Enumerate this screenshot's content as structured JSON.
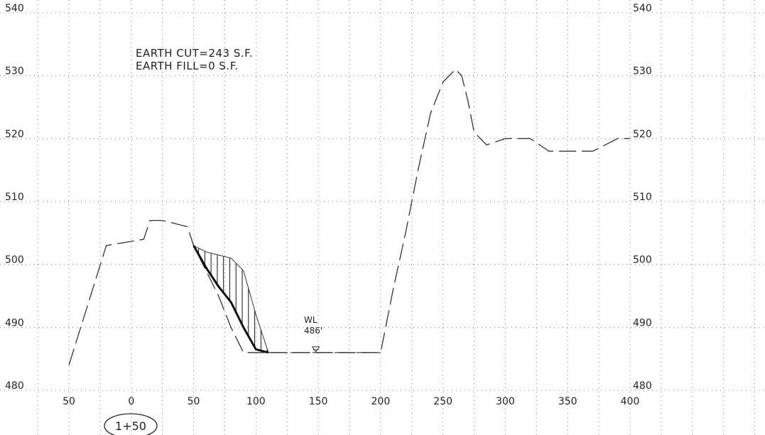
{
  "chart_data": {
    "type": "line",
    "x": [
      -50,
      -20,
      10,
      15,
      25,
      35,
      45,
      50,
      60,
      70,
      80,
      90,
      100,
      110,
      130,
      150,
      170,
      200,
      210,
      220,
      230,
      240,
      250,
      260,
      265,
      270,
      275,
      285,
      300,
      320,
      335,
      345,
      355,
      370,
      380,
      390,
      395,
      400
    ],
    "y": [
      484,
      503,
      504,
      507,
      507,
      506.5,
      506,
      503,
      499,
      495,
      490,
      486,
      486,
      486,
      486,
      486,
      486,
      486,
      496,
      505,
      515,
      524,
      529,
      531,
      530,
      526,
      521,
      519,
      520,
      520,
      518,
      518,
      518,
      518,
      519,
      520,
      520,
      520
    ],
    "xlim": [
      -55,
      400
    ],
    "ylim": [
      480,
      540
    ],
    "x_ticks": [
      -50,
      0,
      50,
      100,
      150,
      200,
      250,
      300,
      350,
      400
    ],
    "x_tick_labels": [
      "50",
      "0",
      "50",
      "100",
      "150",
      "200",
      "250",
      "300",
      "350",
      "400"
    ],
    "y_ticks": [
      480,
      490,
      500,
      510,
      520,
      530,
      540
    ],
    "y_tick_labels_left": [
      "480",
      "490",
      "500",
      "510",
      "520",
      "530",
      "540"
    ],
    "y_tick_labels_right": [
      "480",
      "490",
      "500",
      "510",
      "520",
      "530",
      "540"
    ],
    "grid": true,
    "cut_line": {
      "x": [
        50,
        60,
        70,
        80,
        90,
        100,
        110
      ],
      "y": [
        503,
        499.5,
        496.5,
        494,
        490,
        486.5,
        486
      ]
    },
    "cut_top": {
      "x": [
        50,
        60,
        70,
        80,
        90,
        100,
        110
      ],
      "y": [
        503,
        502,
        501.5,
        501,
        499,
        492,
        486
      ]
    },
    "water_level": {
      "x_start": 110,
      "x_end": 200,
      "y": 486,
      "marker_x": 148
    }
  },
  "annotations": {
    "cut_note": "EARTH CUT=243 S.F.",
    "fill_note": "EARTH FILL=0 S.F.",
    "wl_label": "WL",
    "wl_value": "486'"
  },
  "station_label": "1+50",
  "colors": {
    "grid": "#777777",
    "line": "#333333",
    "cut_line": "#111111"
  }
}
